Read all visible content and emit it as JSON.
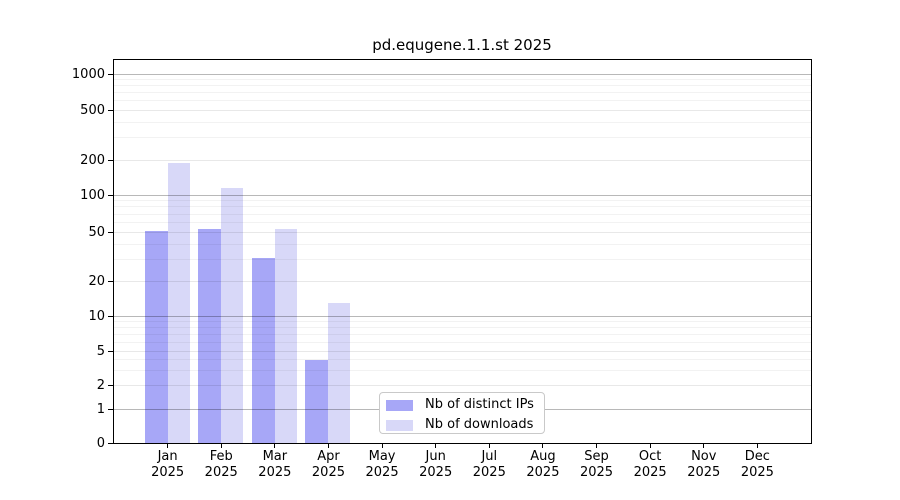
{
  "chart_data": {
    "type": "bar",
    "title": "pd.equgene.1.1.st 2025",
    "categories": [
      "Jan",
      "Feb",
      "Mar",
      "Apr",
      "May",
      "Jun",
      "Jul",
      "Aug",
      "Sep",
      "Oct",
      "Nov",
      "Dec"
    ],
    "x_tick_second_line": "2025",
    "series": [
      {
        "name": "Nb of distinct IPs",
        "color": "#a7a7f7",
        "values": [
          51,
          53,
          31,
          4,
          0,
          0,
          0,
          0,
          0,
          0,
          0,
          0
        ]
      },
      {
        "name": "Nb of downloads",
        "color": "#d8d8f8",
        "values": [
          190,
          116,
          53,
          13,
          0,
          0,
          0,
          0,
          0,
          0,
          0,
          0
        ]
      }
    ],
    "y_ticks": [
      0,
      1,
      2,
      5,
      10,
      20,
      50,
      100,
      200,
      500,
      1000
    ],
    "y_scale": "symlog (linear 0-1, logarithmic 1-1000)",
    "ylim": [
      0,
      1300
    ],
    "xlabel": "",
    "ylabel": "",
    "grid": "horizontal",
    "legend_position": "bottom-center"
  }
}
